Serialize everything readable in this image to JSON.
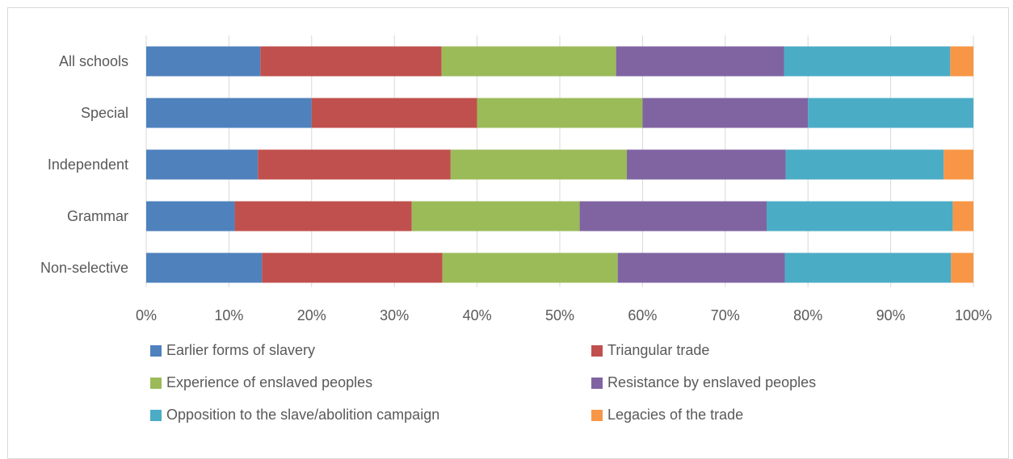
{
  "chart_data": {
    "type": "bar",
    "orientation": "horizontal",
    "stacked": "percent",
    "categories": [
      "All schools",
      "Special",
      "Independent",
      "Grammar",
      "Non-selective"
    ],
    "series": [
      {
        "name": "Earlier forms of slavery",
        "color": "#4f81bd",
        "values": [
          13.8,
          20.0,
          13.5,
          10.7,
          14.0
        ]
      },
      {
        "name": "Triangular trade",
        "color": "#c0504d",
        "values": [
          21.9,
          20.0,
          23.3,
          21.4,
          21.8
        ]
      },
      {
        "name": "Experience of enslaved peoples",
        "color": "#9bbb59",
        "values": [
          21.1,
          20.0,
          21.3,
          20.3,
          21.2
        ]
      },
      {
        "name": "Resistance by enslaved peoples",
        "color": "#8064a2",
        "values": [
          20.3,
          20.0,
          19.2,
          22.6,
          20.2
        ]
      },
      {
        "name": "Opposition to the slave/abolition campaign",
        "color": "#4bacc6",
        "values": [
          20.1,
          20.0,
          19.1,
          22.5,
          20.1
        ]
      },
      {
        "name": "Legacies of the trade",
        "color": "#f79646",
        "values": [
          2.8,
          0.0,
          3.6,
          2.5,
          2.7
        ]
      }
    ],
    "xaxis": {
      "range": [
        0,
        100
      ],
      "ticks": [
        "0%",
        "10%",
        "20%",
        "30%",
        "40%",
        "50%",
        "60%",
        "70%",
        "80%",
        "90%",
        "100%"
      ]
    },
    "grid": "vertical",
    "legend": "bottom"
  }
}
